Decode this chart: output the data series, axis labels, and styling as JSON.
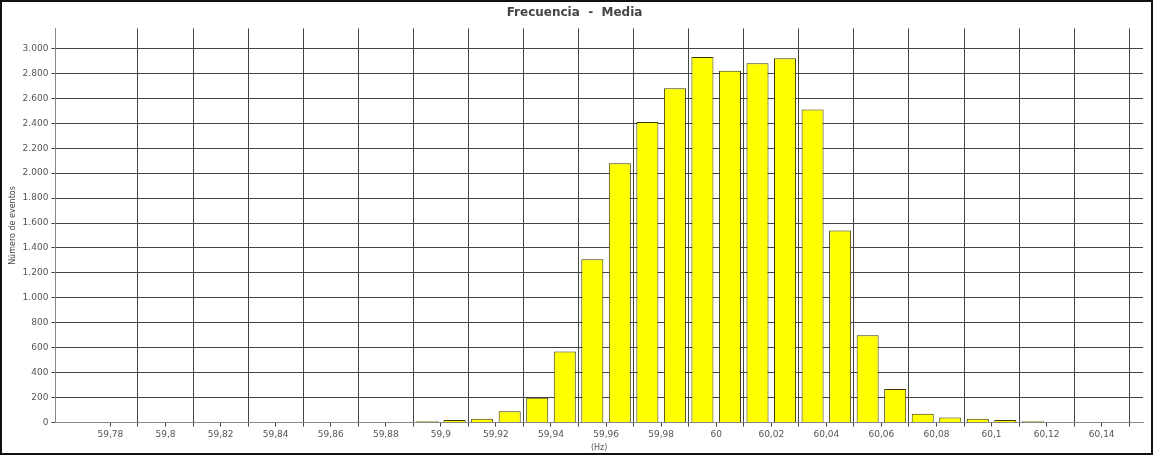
{
  "chart_data": {
    "type": "histogram",
    "title": "Frecuencia  -  Media",
    "xlabel": "(Hz)",
    "ylabel": "Número de eventos",
    "bins": [
      59.89,
      59.9,
      59.91,
      59.92,
      59.93,
      59.94,
      59.95,
      59.96,
      59.97,
      59.98,
      59.99,
      60.0,
      60.01,
      60.02,
      60.03,
      60.04,
      60.05,
      60.06,
      60.07,
      60.08,
      60.09,
      60.1,
      60.11,
      60.12
    ],
    "values": [
      10,
      20,
      30,
      90,
      200,
      570,
      1310,
      2080,
      2410,
      2680,
      2930,
      2820,
      2880,
      2920,
      2510,
      1540,
      700,
      270,
      70,
      40,
      30,
      20,
      10
    ],
    "color": "#ffff00",
    "xlim": [
      59.76,
      60.155
    ],
    "xticks": [
      {
        "value": 59.78,
        "label": "59,78"
      },
      {
        "value": 59.79,
        "label": null
      },
      {
        "value": 59.8,
        "label": "59,8"
      },
      {
        "value": 59.81,
        "label": null
      },
      {
        "value": 59.82,
        "label": "59,82"
      },
      {
        "value": 59.83,
        "label": null
      },
      {
        "value": 59.84,
        "label": "59,84"
      },
      {
        "value": 59.85,
        "label": null
      },
      {
        "value": 59.86,
        "label": "59,86"
      },
      {
        "value": 59.87,
        "label": null
      },
      {
        "value": 59.88,
        "label": "59,88"
      },
      {
        "value": 59.89,
        "label": null
      },
      {
        "value": 59.9,
        "label": "59,9"
      },
      {
        "value": 59.91,
        "label": null
      },
      {
        "value": 59.92,
        "label": "59,92"
      },
      {
        "value": 59.93,
        "label": null
      },
      {
        "value": 59.94,
        "label": "59,94"
      },
      {
        "value": 59.95,
        "label": null
      },
      {
        "value": 59.96,
        "label": "59,96"
      },
      {
        "value": 59.97,
        "label": null
      },
      {
        "value": 59.98,
        "label": "59,98"
      },
      {
        "value": 59.99,
        "label": null
      },
      {
        "value": 60,
        "label": "60"
      },
      {
        "value": 60.01,
        "label": null
      },
      {
        "value": 60.02,
        "label": "60,02"
      },
      {
        "value": 60.03,
        "label": null
      },
      {
        "value": 60.04,
        "label": "60,04"
      },
      {
        "value": 60.05,
        "label": null
      },
      {
        "value": 60.06,
        "label": "60,06"
      },
      {
        "value": 60.07,
        "label": null
      },
      {
        "value": 60.08,
        "label": "60,08"
      },
      {
        "value": 60.09,
        "label": null
      },
      {
        "value": 60.1,
        "label": "60,1"
      },
      {
        "value": 60.11,
        "label": null
      },
      {
        "value": 60.12,
        "label": "60,12"
      },
      {
        "value": 60.13,
        "label": null
      },
      {
        "value": 60.14,
        "label": "60,14"
      },
      {
        "value": 60.15,
        "label": null
      }
    ],
    "ylim": [
      0,
      3160
    ],
    "yticks": [
      0,
      200,
      400,
      600,
      800,
      {
        "value": 1000,
        "label": "1.000"
      },
      {
        "value": 1200,
        "label": "1.200"
      },
      {
        "value": 1400,
        "label": "1.400"
      },
      {
        "value": 1600,
        "label": "1.600"
      },
      {
        "value": 1800,
        "label": "1.800"
      },
      {
        "value": 2000,
        "label": "2.000"
      },
      {
        "value": 2200,
        "label": "2.200"
      },
      {
        "value": 2400,
        "label": "2.400"
      },
      {
        "value": 2600,
        "label": "2.600"
      },
      {
        "value": 2800,
        "label": "2.800"
      },
      {
        "value": 3000,
        "label": "3.000"
      }
    ],
    "grid": true,
    "legend": false
  }
}
